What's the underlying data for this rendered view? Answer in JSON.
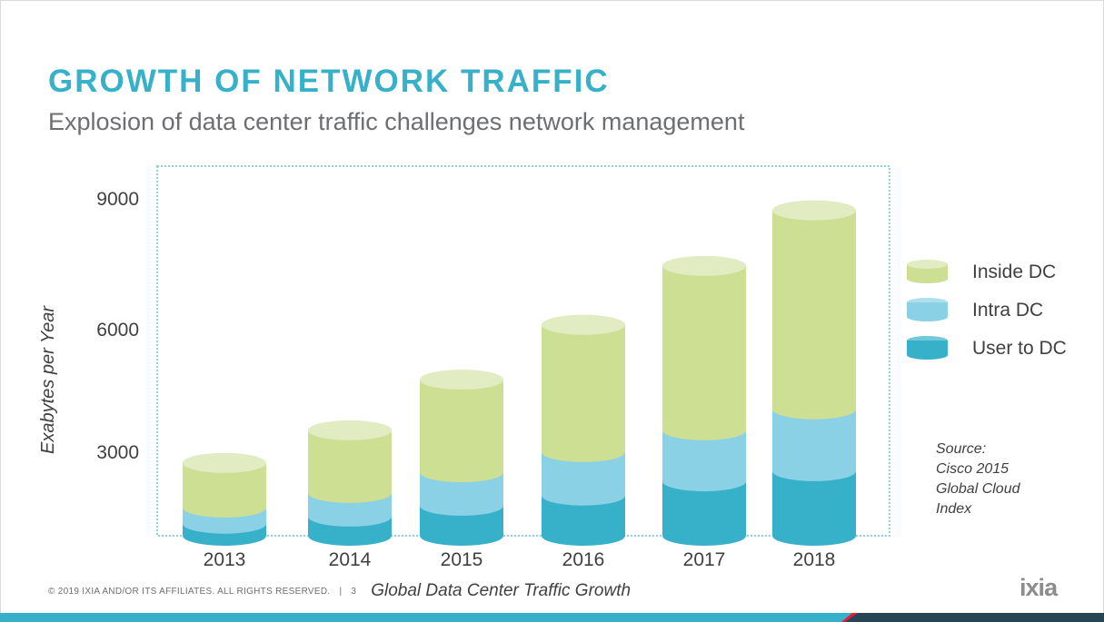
{
  "title": "GROWTH OF NETWORK TRAFFIC",
  "subtitle": "Explosion of data center traffic challenges network management",
  "footer": {
    "copyright": "© 2019 IXIA AND/OR ITS AFFILIATES. ALL RIGHTS RESERVED.",
    "separator": "|",
    "page": "3",
    "caption": "Global Data Center Traffic Growth"
  },
  "logo": "ixia",
  "source_note": [
    "Source:",
    "Cisco 2015",
    "Global Cloud",
    "Index"
  ],
  "chart_data": {
    "type": "bar",
    "stacked": true,
    "style": "3d-cylinder",
    "categories": [
      "2013",
      "2014",
      "2015",
      "2016",
      "2017",
      "2018"
    ],
    "ylabel": "Exabytes per Year",
    "xlabel": "",
    "ylim": [
      0,
      9000
    ],
    "yticks": [
      3000,
      6000,
      9000
    ],
    "grid": false,
    "legend_position": "right",
    "series": [
      {
        "name": "User to DC",
        "color": "#37b0c9",
        "values": [
          320,
          510,
          800,
          1070,
          1450,
          1720
        ]
      },
      {
        "name": "Intra DC",
        "color": "#8ad1e5",
        "values": [
          430,
          630,
          890,
          1160,
          1360,
          1650
        ]
      },
      {
        "name": "Inside DC",
        "color": "#cddf92",
        "top_color": "#e1ecc2",
        "values": [
          1190,
          1670,
          2470,
          3390,
          4380,
          5300
        ]
      }
    ]
  }
}
